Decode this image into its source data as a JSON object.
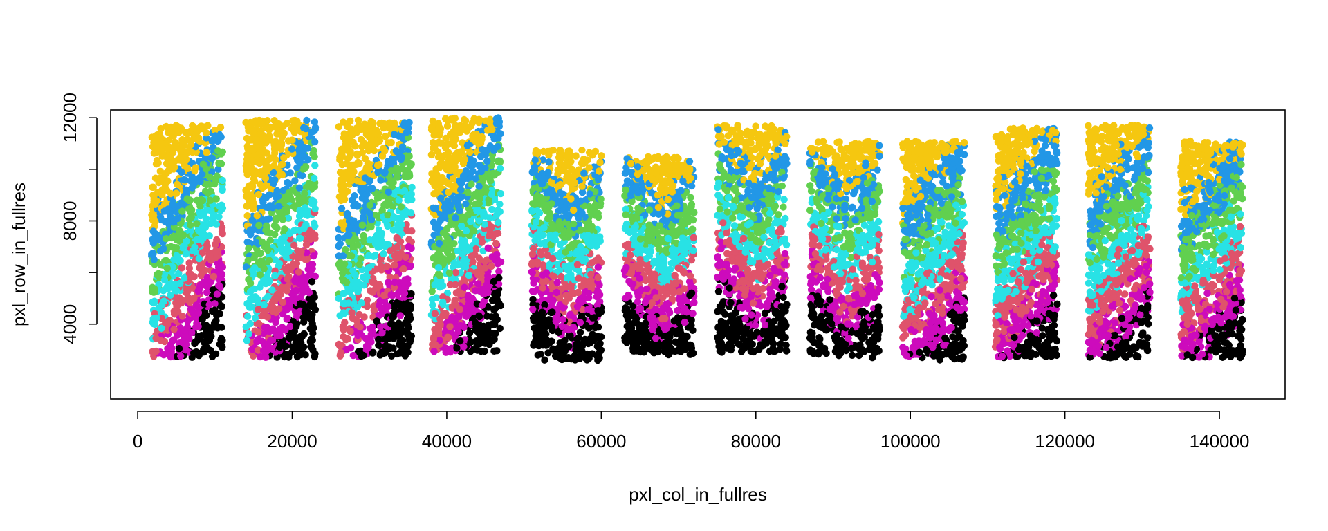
{
  "chart_data": {
    "type": "scatter",
    "title": "",
    "xlabel": "pxl_col_in_fullres",
    "ylabel": "pxl_row_in_fullres",
    "xlim": [
      -3500,
      148500
    ],
    "ylim": [
      1100,
      12300
    ],
    "xticks": [
      0,
      20000,
      40000,
      60000,
      80000,
      100000,
      120000,
      140000
    ],
    "xtick_labels": [
      "0",
      "20000",
      "40000",
      "60000",
      "80000",
      "100000",
      "120000",
      "140000"
    ],
    "yticks": [
      4000,
      8000,
      12000
    ],
    "ytick_labels": [
      "4000",
      "8000",
      "12000"
    ],
    "grid": false,
    "legend": "none",
    "colors": {
      "cluster_black": "#000000",
      "cluster_magenta": "#CD0BBC",
      "cluster_red": "#DF536B",
      "cluster_cyan": "#28E2E5",
      "cluster_green": "#61D04F",
      "cluster_blue": "#2297E6",
      "cluster_yellow": "#F5C710"
    },
    "samples": [
      {
        "xmin": 1800,
        "xmax": 11000,
        "ymin": 2700,
        "ymax": 11700
      },
      {
        "xmin": 14000,
        "xmax": 23000,
        "ymin": 2700,
        "ymax": 11900
      },
      {
        "xmin": 26000,
        "xmax": 35500,
        "ymin": 2700,
        "ymax": 11900
      },
      {
        "xmin": 38000,
        "xmax": 47000,
        "ymin": 2900,
        "ymax": 12000
      },
      {
        "xmin": 51000,
        "xmax": 60000,
        "ymin": 2600,
        "ymax": 10800
      },
      {
        "xmin": 63000,
        "xmax": 72000,
        "ymin": 2800,
        "ymax": 10500
      },
      {
        "xmin": 75000,
        "xmax": 84000,
        "ymin": 2900,
        "ymax": 11700
      },
      {
        "xmin": 87000,
        "xmax": 96000,
        "ymin": 2700,
        "ymax": 11100
      },
      {
        "xmin": 99000,
        "xmax": 107000,
        "ymin": 2600,
        "ymax": 11100
      },
      {
        "xmin": 111000,
        "xmax": 119000,
        "ymin": 2700,
        "ymax": 11600
      },
      {
        "xmin": 123000,
        "xmax": 131000,
        "ymin": 2700,
        "ymax": 11700
      },
      {
        "xmin": 135000,
        "xmax": 143000,
        "ymin": 2700,
        "ymax": 11100
      }
    ]
  }
}
